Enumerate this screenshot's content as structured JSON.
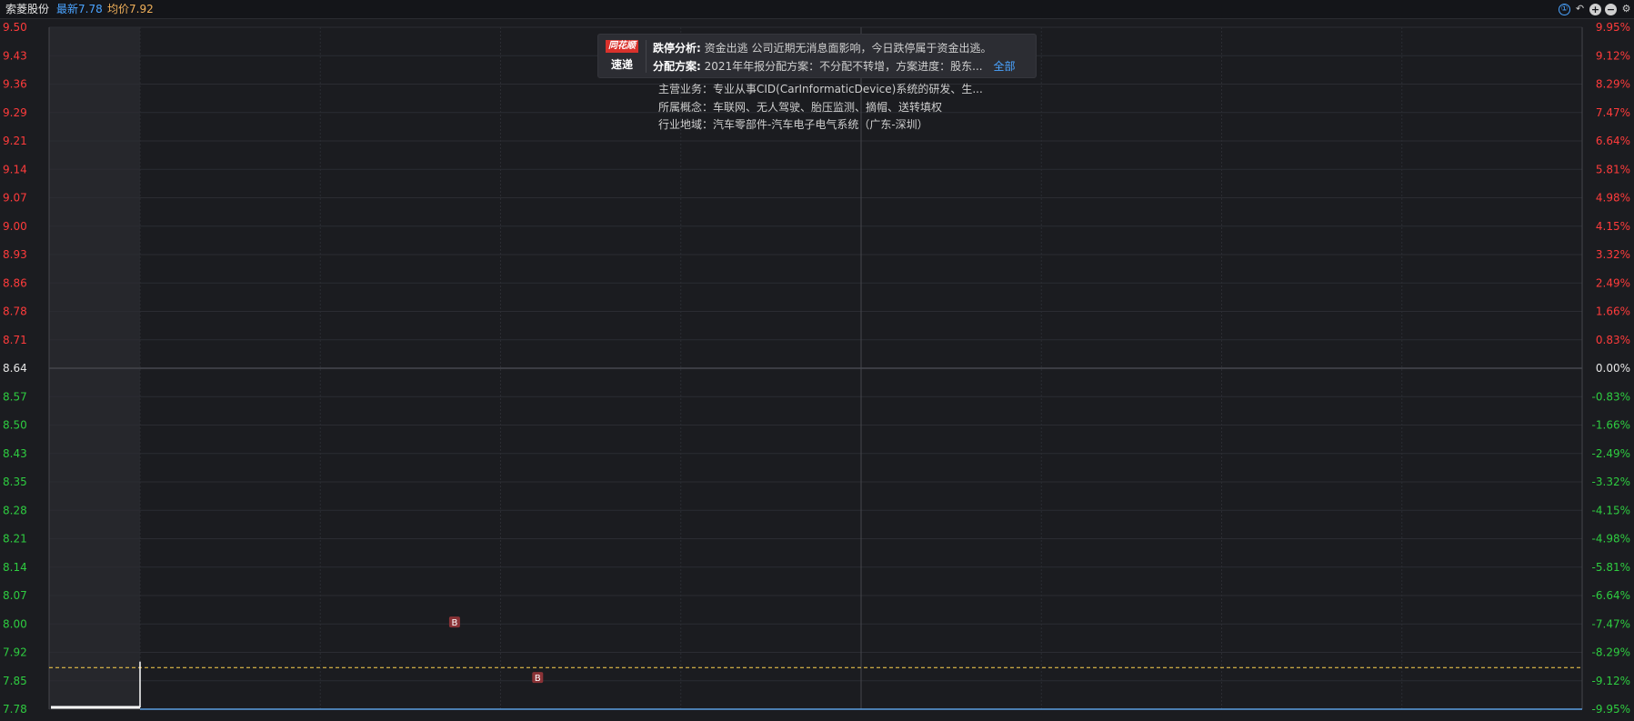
{
  "header": {
    "stock_name": "索菱股份",
    "latest": "最新7.78",
    "avg": "均价7.92"
  },
  "controls": [
    {
      "name": "info-icon",
      "glyph": "①"
    },
    {
      "name": "undo-icon",
      "glyph": "↶"
    },
    {
      "name": "zoom-in-icon",
      "glyph": "+"
    },
    {
      "name": "zoom-out-icon",
      "glyph": "−"
    },
    {
      "name": "gear-icon",
      "glyph": "⚙"
    }
  ],
  "colors": {
    "up": "#ff3b3b",
    "down": "#2ecc40",
    "neutral": "#e6e6e6",
    "price_line": "#4aa3ff",
    "avg_line": "#e8a95c",
    "dash": "#ffd34d"
  },
  "popup": {
    "logo_brand": "同花顺",
    "logo_sub": "速递",
    "analysis_label": "跌停分析:",
    "analysis_text": "资金出逃  公司近期无消息面影响，今日跌停属于资金出逃。",
    "dividend_label": "分配方案:",
    "dividend_text": "2021年年报分配方案：不分配不转增，方案进度：股东...",
    "all_link": "全部"
  },
  "info": {
    "main_business": "主营业务：专业从事CID(CarInformaticDevice)系统的研发、生...",
    "concepts": "所属概念：车联网、无人驾驶、胎压监测、摘帽、送转填权",
    "industry": "行业地域：汽车零部件-汽车电子电气系统（广东-深圳）"
  },
  "chart_data": {
    "type": "line",
    "prev_close": 8.64,
    "ylim": [
      7.78,
      9.5
    ],
    "y_ticks_left": [
      "9.50",
      "9.43",
      "9.36",
      "9.29",
      "9.21",
      "9.14",
      "9.07",
      "9.00",
      "8.93",
      "8.86",
      "8.78",
      "8.71",
      "8.64",
      "8.57",
      "8.50",
      "8.43",
      "8.35",
      "8.28",
      "8.21",
      "8.14",
      "8.07",
      "8.00",
      "7.92",
      "7.85",
      "7.78"
    ],
    "y_ticks_right": [
      "9.95%",
      "9.12%",
      "8.29%",
      "7.47%",
      "6.64%",
      "5.81%",
      "4.98%",
      "4.15%",
      "3.32%",
      "2.49%",
      "1.66%",
      "0.83%",
      "0.00%",
      "-0.83%",
      "-1.66%",
      "-2.49%",
      "-3.32%",
      "-4.15%",
      "-4.98%",
      "-5.81%",
      "-6.64%",
      "-7.47%",
      "-8.29%",
      "-9.12%",
      "-9.95%"
    ],
    "dashed_level": 7.885,
    "series": [
      {
        "kind": "price",
        "values": [
          7.78,
          7.78,
          7.78,
          7.78,
          7.78,
          7.78,
          7.78,
          7.78,
          7.78,
          7.78,
          7.78,
          7.78,
          7.78,
          7.78,
          7.78,
          7.78,
          7.78,
          7.78,
          7.78,
          7.78,
          7.78,
          7.78,
          7.78,
          7.78,
          7.78,
          7.78,
          7.78,
          7.78,
          7.78,
          7.78,
          7.78,
          7.78,
          7.78,
          7.78,
          7.78,
          7.78,
          7.78,
          7.78,
          7.78,
          7.78,
          7.78,
          7.78,
          7.78,
          7.78,
          7.78,
          7.78,
          7.78,
          7.78,
          7.78,
          7.78,
          7.78,
          7.78,
          7.78,
          7.78,
          7.78,
          7.78,
          7.78,
          7.78,
          7.78,
          7.78,
          7.78,
          7.78,
          7.78,
          7.78,
          7.78,
          7.78,
          7.78,
          7.78,
          7.78,
          7.78,
          7.78,
          7.78,
          7.78,
          7.78,
          7.78,
          7.78,
          7.78,
          7.78,
          7.78,
          7.78,
          7.78,
          7.78,
          7.78,
          7.78,
          7.78,
          7.78,
          7.78,
          7.78,
          7.78,
          7.78,
          7.78,
          7.78,
          7.78,
          7.78,
          7.78,
          7.78,
          7.78,
          7.78,
          7.78,
          7.78,
          7.78,
          7.78,
          7.78,
          7.78,
          7.78,
          7.78,
          7.78,
          7.78,
          7.78,
          7.78,
          7.78,
          7.78,
          7.78,
          7.78,
          7.78,
          7.78,
          7.78,
          7.78,
          7.78,
          7.78,
          7.78,
          7.78,
          7.78,
          7.78,
          7.78,
          7.78,
          7.78,
          7.78,
          7.78,
          7.78,
          7.78,
          7.78,
          7.78,
          7.78,
          7.78,
          7.78,
          7.78,
          7.78,
          7.78,
          7.78,
          7.78,
          7.78,
          7.78,
          7.78,
          7.78,
          7.78,
          7.78,
          7.78,
          7.78,
          7.78,
          7.78,
          7.78,
          7.78,
          7.78,
          7.78,
          7.78,
          7.78,
          7.78,
          7.78,
          7.78,
          7.78,
          7.78,
          7.78,
          7.78,
          7.78,
          7.78,
          7.78,
          7.78,
          7.78,
          7.78,
          7.78,
          7.78,
          7.78,
          7.78,
          7.78,
          7.78,
          7.78,
          7.78,
          7.78,
          7.78,
          7.78,
          7.78,
          7.78,
          7.78,
          7.78,
          7.78,
          7.78,
          7.78,
          7.78,
          7.78,
          7.78,
          7.78,
          7.78,
          7.78,
          7.78,
          7.78,
          7.78,
          7.78,
          7.78,
          7.78,
          7.78,
          7.78,
          7.78,
          7.78,
          7.78,
          7.78,
          7.78,
          7.78,
          7.78,
          7.78,
          7.78,
          7.78,
          7.78,
          7.78,
          7.78,
          7.78,
          7.78,
          7.78,
          7.78,
          7.78,
          7.78,
          7.78,
          7.78,
          7.78,
          7.78,
          7.78,
          7.78,
          7.78,
          7.78,
          7.78,
          7.78,
          7.78,
          7.78,
          7.78,
          7.78,
          7.78,
          7.78,
          7.78,
          7.78,
          7.78,
          7.78,
          7.78,
          7.78,
          7.78
        ]
      }
    ],
    "buy_markers": [
      {
        "label": "B",
        "time_index": 53,
        "price": 8.0
      },
      {
        "label": "B",
        "time_index": 67,
        "price": 7.86
      }
    ]
  }
}
